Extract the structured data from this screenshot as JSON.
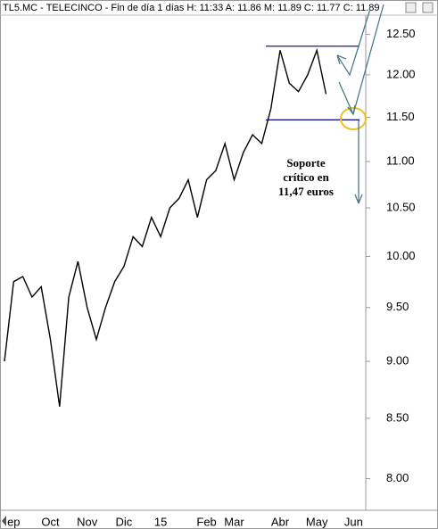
{
  "chart_data": {
    "type": "line",
    "title": "TL5.MC - TELECINCO - Fin de día 1 días  H: 11:33  A: 11.86  M: 11.89  C: 11.77  C: 11.89",
    "categories": [
      null,
      "ep",
      null,
      null,
      null,
      "Oct",
      null,
      null,
      null,
      "Nov",
      null,
      null,
      null,
      "Dic",
      null,
      null,
      null,
      "15",
      null,
      null,
      null,
      null,
      "Feb",
      null,
      null,
      "Mar",
      null,
      null,
      null,
      null,
      "Abr",
      null,
      null,
      null,
      "May",
      null,
      null,
      null,
      "Jun"
    ],
    "series": [
      {
        "name": "TL5.MC",
        "color": "#000000",
        "values": [
          9.0,
          9.75,
          9.8,
          9.6,
          9.7,
          9.2,
          8.6,
          9.6,
          9.95,
          9.5,
          9.2,
          9.5,
          9.75,
          9.9,
          10.2,
          10.1,
          10.4,
          10.2,
          10.5,
          10.6,
          10.8,
          10.4,
          10.8,
          10.9,
          11.2,
          10.8,
          11.1,
          11.3,
          11.2,
          11.6,
          12.3,
          11.9,
          11.8,
          12.0,
          12.3,
          11.77,
          null,
          null,
          null
        ]
      }
    ],
    "ylim": [
      7.75,
      12.73
    ],
    "log_scale": true,
    "yticks": [
      {
        "value": 12.5,
        "label": "12.50"
      },
      {
        "value": 12,
        "label": "12.00"
      },
      {
        "value": 11.5,
        "label": "11.50"
      },
      {
        "value": 11,
        "label": "11.00"
      },
      {
        "value": 10.5,
        "label": "10.50"
      },
      {
        "value": 10,
        "label": "10.00"
      },
      {
        "value": 9.5,
        "label": "9.50"
      },
      {
        "value": 9,
        "label": "9.00"
      },
      {
        "value": 8.5,
        "label": "8.50"
      },
      {
        "value": 8,
        "label": "8.00"
      }
    ],
    "levels": [
      12.35,
      11.47
    ],
    "level_color": "#000080",
    "annotation": [
      "Soporte",
      "crítico en",
      "11,47 euros"
    ]
  }
}
